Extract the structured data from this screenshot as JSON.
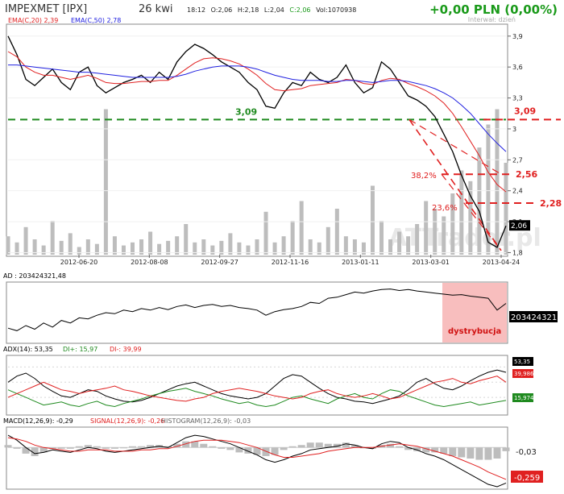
{
  "header": {
    "ticker": "IMPEXMET [IPX]",
    "date": "26 kwi",
    "time": "18:12",
    "open": "O:2,06",
    "high": "H:2,18",
    "low": "L:2,04",
    "close": "C:2,06",
    "volume": "Vol:1070938",
    "change": "+0,00 PLN (0,00%)",
    "interval": "Interwał: dzień"
  },
  "colors": {
    "price": "#000000",
    "ema20": "#e02020",
    "ema50": "#2020e0",
    "volume": "#bdbdbd",
    "support": "#1f8a1f",
    "fib": "#e02020",
    "distribution_zone": "#f6a8a8",
    "di_plus": "#1f8a1f",
    "di_minus": "#e02020"
  },
  "chart_data": [
    {
      "panel": "price",
      "type": "line",
      "legend": [
        "EMA(C,20) 2,39",
        "EMA(C,50) 2,78"
      ],
      "x_ticks": [
        "2012-06-20",
        "2012-08-08",
        "2012-09-27",
        "2012-11-16",
        "2013-01-11",
        "2013-03-01",
        "2013-04-24"
      ],
      "y_ticks": [
        "3,9",
        "3,6",
        "3,3",
        "3",
        "2,7",
        "2,4",
        "2,1",
        "1,8"
      ],
      "ylim": [
        1.78,
        4.0
      ],
      "watermark": "ATTrader.pl",
      "series": [
        {
          "values": [
            3.9,
            3.72,
            3.48,
            3.42,
            3.5,
            3.58,
            3.45,
            3.38,
            3.55,
            3.6,
            3.42,
            3.35,
            3.4,
            3.45,
            3.48,
            3.52,
            3.45,
            3.55,
            3.48,
            3.65,
            3.75,
            3.82,
            3.78,
            3.72,
            3.65,
            3.6,
            3.55,
            3.45,
            3.38,
            3.22,
            3.2,
            3.35,
            3.45,
            3.42,
            3.55,
            3.48,
            3.45,
            3.5,
            3.62,
            3.45,
            3.35,
            3.4,
            3.65,
            3.58,
            3.45,
            3.32,
            3.28,
            3.22,
            3.12,
            2.95,
            2.78,
            2.55,
            2.35,
            2.2,
            1.9,
            1.85,
            2.06
          ]
        },
        {
          "values": [
            3.75,
            3.7,
            3.6,
            3.55,
            3.52,
            3.52,
            3.5,
            3.48,
            3.5,
            3.52,
            3.49,
            3.45,
            3.44,
            3.44,
            3.45,
            3.46,
            3.46,
            3.47,
            3.47,
            3.52,
            3.58,
            3.64,
            3.68,
            3.69,
            3.68,
            3.66,
            3.63,
            3.58,
            3.52,
            3.44,
            3.38,
            3.37,
            3.38,
            3.39,
            3.42,
            3.43,
            3.44,
            3.45,
            3.48,
            3.47,
            3.44,
            3.43,
            3.47,
            3.49,
            3.48,
            3.44,
            3.41,
            3.37,
            3.32,
            3.25,
            3.15,
            3.02,
            2.88,
            2.74,
            2.58,
            2.46,
            2.39
          ]
        },
        {
          "values": [
            3.62,
            3.62,
            3.61,
            3.6,
            3.59,
            3.58,
            3.57,
            3.56,
            3.55,
            3.55,
            3.54,
            3.53,
            3.52,
            3.51,
            3.5,
            3.5,
            3.5,
            3.5,
            3.5,
            3.51,
            3.53,
            3.56,
            3.58,
            3.6,
            3.61,
            3.61,
            3.61,
            3.6,
            3.58,
            3.55,
            3.52,
            3.5,
            3.48,
            3.47,
            3.47,
            3.47,
            3.46,
            3.46,
            3.47,
            3.47,
            3.46,
            3.45,
            3.46,
            3.47,
            3.47,
            3.46,
            3.44,
            3.42,
            3.39,
            3.35,
            3.3,
            3.23,
            3.15,
            3.05,
            2.95,
            2.86,
            2.78
          ]
        }
      ],
      "volume": [
        0.12,
        0.08,
        0.18,
        0.1,
        0.06,
        0.22,
        0.09,
        0.14,
        0.05,
        0.1,
        0.07,
        0.95,
        0.12,
        0.06,
        0.08,
        0.1,
        0.15,
        0.07,
        0.09,
        0.12,
        0.2,
        0.08,
        0.1,
        0.06,
        0.09,
        0.14,
        0.08,
        0.06,
        0.1,
        0.28,
        0.08,
        0.12,
        0.22,
        0.35,
        0.1,
        0.08,
        0.18,
        0.3,
        0.12,
        0.1,
        0.08,
        0.45,
        0.22,
        0.1,
        0.15,
        0.12,
        0.2,
        0.35,
        0.3,
        0.25,
        0.4,
        0.55,
        0.48,
        0.7,
        0.85,
        0.95,
        0.6
      ],
      "annotations": [
        {
          "label": "3,09",
          "value": 3.09,
          "kind": "support"
        },
        {
          "label": "3,09",
          "value": 3.09,
          "kind": "level"
        },
        {
          "label": "2,56",
          "value": 2.56,
          "kind": "level"
        },
        {
          "label": "2,28",
          "value": 2.28,
          "kind": "level"
        },
        {
          "label": "38,2%",
          "value": 2.56,
          "kind": "fib"
        },
        {
          "label": "23,6%",
          "value": 2.28,
          "kind": "fib"
        },
        {
          "label": "2,06",
          "value": 2.06,
          "kind": "last"
        }
      ]
    },
    {
      "panel": "AD",
      "type": "line",
      "title": "AD : 203424321,48",
      "last_label": "203424321",
      "zone_label": "dystrybucja",
      "ylim": [
        0,
        1
      ],
      "values": [
        0.2,
        0.15,
        0.25,
        0.18,
        0.3,
        0.22,
        0.35,
        0.3,
        0.4,
        0.38,
        0.45,
        0.5,
        0.48,
        0.55,
        0.52,
        0.58,
        0.55,
        0.6,
        0.56,
        0.62,
        0.65,
        0.6,
        0.64,
        0.66,
        0.62,
        0.64,
        0.6,
        0.58,
        0.55,
        0.45,
        0.52,
        0.56,
        0.58,
        0.62,
        0.7,
        0.68,
        0.78,
        0.8,
        0.85,
        0.9,
        0.88,
        0.92,
        0.95,
        0.96,
        0.93,
        0.95,
        0.92,
        0.9,
        0.88,
        0.86,
        0.84,
        0.85,
        0.82,
        0.8,
        0.78,
        0.55,
        0.68
      ]
    },
    {
      "panel": "ADX",
      "type": "line",
      "title": "ADX(14): 53,35",
      "legend": [
        "DI+: 15,97",
        "DI-: 39,99"
      ],
      "last_labels": [
        "53,35",
        "39,986",
        "15,974"
      ],
      "ylim": [
        0,
        70
      ],
      "series": [
        {
          "values": [
            40,
            48,
            52,
            45,
            35,
            28,
            22,
            20,
            25,
            30,
            28,
            22,
            18,
            15,
            14,
            16,
            20,
            25,
            30,
            35,
            38,
            40,
            35,
            30,
            25,
            22,
            20,
            18,
            20,
            25,
            35,
            45,
            50,
            48,
            40,
            32,
            25,
            20,
            18,
            15,
            14,
            12,
            15,
            18,
            22,
            30,
            40,
            45,
            38,
            32,
            30,
            35,
            42,
            48,
            53,
            56,
            53
          ]
        },
        {
          "values": [
            30,
            25,
            20,
            15,
            10,
            12,
            14,
            10,
            8,
            12,
            15,
            10,
            8,
            12,
            15,
            18,
            22,
            25,
            28,
            30,
            32,
            28,
            25,
            22,
            18,
            15,
            12,
            14,
            10,
            8,
            10,
            15,
            20,
            22,
            18,
            15,
            12,
            18,
            22,
            25,
            20,
            18,
            25,
            30,
            28,
            22,
            18,
            14,
            10,
            8,
            10,
            12,
            14,
            10,
            12,
            14,
            16
          ]
        },
        {
          "values": [
            20,
            25,
            30,
            35,
            40,
            35,
            30,
            28,
            25,
            28,
            30,
            32,
            35,
            30,
            28,
            25,
            22,
            20,
            18,
            16,
            15,
            18,
            20,
            25,
            28,
            30,
            32,
            30,
            28,
            25,
            22,
            20,
            18,
            20,
            25,
            28,
            30,
            25,
            22,
            20,
            22,
            25,
            22,
            18,
            20,
            25,
            30,
            35,
            40,
            42,
            45,
            40,
            38,
            42,
            45,
            48,
            40
          ]
        }
      ]
    },
    {
      "panel": "MACD",
      "type": "line",
      "title": "MACD(12,26,9): -0,29",
      "legend": [
        "SIGNAL(12,26,9): -0,26",
        "HISTOGRAM(12,26,9): -0,03"
      ],
      "last_labels": [
        "-0,03",
        "-0,259"
      ],
      "ylim": [
        -0.32,
        0.14
      ],
      "series": [
        {
          "values": [
            0.1,
            0.06,
            0.0,
            -0.05,
            -0.04,
            -0.02,
            -0.03,
            -0.04,
            -0.02,
            0.0,
            -0.01,
            -0.03,
            -0.04,
            -0.03,
            -0.02,
            -0.01,
            0.0,
            0.01,
            0.0,
            0.04,
            0.08,
            0.1,
            0.09,
            0.07,
            0.05,
            0.03,
            0.0,
            -0.03,
            -0.06,
            -0.1,
            -0.12,
            -0.1,
            -0.07,
            -0.05,
            -0.02,
            -0.01,
            0.0,
            0.01,
            0.03,
            0.02,
            0.0,
            -0.01,
            0.03,
            0.05,
            0.04,
            0.0,
            -0.02,
            -0.05,
            -0.07,
            -0.1,
            -0.14,
            -0.18,
            -0.22,
            -0.26,
            -0.3,
            -0.32,
            -0.29
          ]
        },
        {
          "values": [
            0.08,
            0.07,
            0.05,
            0.02,
            0.0,
            -0.01,
            -0.02,
            -0.03,
            -0.03,
            -0.02,
            -0.02,
            -0.02,
            -0.03,
            -0.03,
            -0.03,
            -0.02,
            -0.02,
            -0.01,
            -0.01,
            0.01,
            0.03,
            0.05,
            0.06,
            0.06,
            0.06,
            0.05,
            0.04,
            0.02,
            0.0,
            -0.03,
            -0.06,
            -0.08,
            -0.08,
            -0.07,
            -0.06,
            -0.05,
            -0.03,
            -0.02,
            -0.01,
            0.0,
            0.0,
            0.0,
            0.01,
            0.02,
            0.03,
            0.02,
            0.01,
            -0.01,
            -0.03,
            -0.05,
            -0.07,
            -0.1,
            -0.13,
            -0.16,
            -0.2,
            -0.23,
            -0.26
          ]
        }
      ],
      "histogram": [
        0.02,
        -0.01,
        -0.05,
        -0.07,
        -0.04,
        -0.01,
        -0.01,
        -0.01,
        0.01,
        0.02,
        0.01,
        -0.01,
        -0.01,
        0.0,
        0.01,
        0.01,
        0.02,
        0.02,
        0.01,
        0.03,
        0.05,
        0.05,
        0.03,
        0.01,
        -0.01,
        -0.02,
        -0.04,
        -0.05,
        -0.06,
        -0.07,
        -0.06,
        -0.02,
        0.01,
        0.02,
        0.04,
        0.04,
        0.03,
        0.03,
        0.04,
        0.02,
        0.0,
        -0.01,
        0.02,
        0.03,
        0.01,
        -0.02,
        -0.03,
        -0.04,
        -0.04,
        -0.05,
        -0.07,
        -0.08,
        -0.09,
        -0.1,
        -0.1,
        -0.09,
        -0.03
      ]
    }
  ]
}
